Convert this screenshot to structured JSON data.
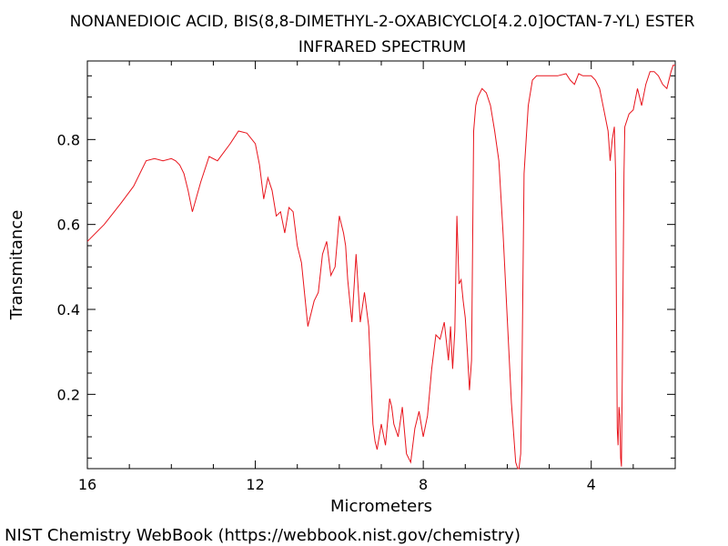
{
  "title_line1": "NONANEDIOIC ACID, BIS(8,8-DIMETHYL-2-OXABICYCLO[4.2.0]OCTAN-7-YL) ESTER",
  "title_line2": "INFRARED SPECTRUM",
  "credit": "NIST Chemistry WebBook (https://webbook.nist.gov/chemistry)",
  "colors": {
    "line": "#e8141c",
    "axis": "#000000",
    "background": "#ffffff"
  },
  "chart_data": {
    "type": "line",
    "xlabel": "Micrometers",
    "ylabel": "Transmitance",
    "xlim": [
      16,
      2
    ],
    "ylim": [
      0.025,
      0.985
    ],
    "x_ticks": [
      16,
      12,
      8,
      4
    ],
    "x_minor_ticks": [
      15,
      14,
      13,
      11,
      10,
      9,
      7,
      6,
      5,
      3,
      2
    ],
    "y_ticks": [
      0.2,
      0.4,
      0.6,
      0.8
    ],
    "y_minor_ticks": [
      0.05,
      0.1,
      0.15,
      0.25,
      0.3,
      0.35,
      0.45,
      0.5,
      0.55,
      0.65,
      0.7,
      0.75,
      0.85,
      0.9,
      0.95
    ],
    "grid": false,
    "series": [
      {
        "x": [
          16.0,
          15.6,
          15.2,
          14.9,
          14.6,
          14.4,
          14.2,
          14.0,
          13.9,
          13.8,
          13.7,
          13.6,
          13.5,
          13.3,
          13.1,
          12.9,
          12.6,
          12.4,
          12.2,
          12.0,
          11.9,
          11.8,
          11.7,
          11.6,
          11.5,
          11.4,
          11.3,
          11.2,
          11.1,
          11.0,
          10.9,
          10.75,
          10.6,
          10.5,
          10.4,
          10.3,
          10.2,
          10.1,
          10.0,
          9.95,
          9.9,
          9.85,
          9.8,
          9.7,
          9.6,
          9.5,
          9.4,
          9.3,
          9.2,
          9.15,
          9.1,
          9.0,
          8.9,
          8.8,
          8.75,
          8.7,
          8.6,
          8.5,
          8.4,
          8.3,
          8.2,
          8.1,
          8.0,
          7.9,
          7.8,
          7.7,
          7.6,
          7.5,
          7.4,
          7.35,
          7.3,
          7.25,
          7.2,
          7.15,
          7.1,
          7.05,
          7.0,
          6.95,
          6.9,
          6.85,
          6.8,
          6.75,
          6.7,
          6.6,
          6.5,
          6.4,
          6.3,
          6.2,
          6.1,
          6.0,
          5.9,
          5.8,
          5.75,
          5.72,
          5.68,
          5.65,
          5.6,
          5.5,
          5.4,
          5.3,
          5.2,
          5.0,
          4.8,
          4.6,
          4.5,
          4.4,
          4.3,
          4.2,
          4.1,
          4.0,
          3.9,
          3.8,
          3.7,
          3.6,
          3.55,
          3.5,
          3.45,
          3.42,
          3.4,
          3.38,
          3.36,
          3.34,
          3.32,
          3.3,
          3.28,
          3.26,
          3.22,
          3.2,
          3.1,
          3.0,
          2.9,
          2.8,
          2.7,
          2.6,
          2.5,
          2.4,
          2.3,
          2.2,
          2.1,
          2.05,
          2.0
        ],
        "y": [
          0.56,
          0.6,
          0.65,
          0.69,
          0.75,
          0.755,
          0.75,
          0.755,
          0.75,
          0.74,
          0.72,
          0.68,
          0.63,
          0.7,
          0.76,
          0.75,
          0.79,
          0.82,
          0.815,
          0.79,
          0.74,
          0.66,
          0.71,
          0.68,
          0.62,
          0.63,
          0.58,
          0.64,
          0.63,
          0.55,
          0.51,
          0.36,
          0.42,
          0.44,
          0.53,
          0.56,
          0.48,
          0.5,
          0.62,
          0.6,
          0.58,
          0.55,
          0.47,
          0.37,
          0.53,
          0.37,
          0.44,
          0.36,
          0.13,
          0.09,
          0.07,
          0.13,
          0.08,
          0.19,
          0.17,
          0.13,
          0.1,
          0.17,
          0.06,
          0.04,
          0.12,
          0.16,
          0.1,
          0.15,
          0.26,
          0.34,
          0.33,
          0.37,
          0.28,
          0.36,
          0.26,
          0.35,
          0.62,
          0.46,
          0.47,
          0.42,
          0.38,
          0.3,
          0.21,
          0.28,
          0.82,
          0.88,
          0.9,
          0.92,
          0.91,
          0.88,
          0.82,
          0.75,
          0.58,
          0.38,
          0.18,
          0.04,
          0.0,
          0.0,
          0.06,
          0.25,
          0.72,
          0.88,
          0.94,
          0.95,
          0.95,
          0.95,
          0.95,
          0.955,
          0.94,
          0.93,
          0.955,
          0.95,
          0.95,
          0.95,
          0.94,
          0.92,
          0.87,
          0.82,
          0.75,
          0.8,
          0.83,
          0.72,
          0.4,
          0.12,
          0.08,
          0.17,
          0.15,
          0.05,
          0.03,
          0.26,
          0.72,
          0.83,
          0.86,
          0.87,
          0.92,
          0.88,
          0.93,
          0.96,
          0.96,
          0.95,
          0.93,
          0.92,
          0.96,
          0.975,
          0.975
        ]
      }
    ]
  }
}
